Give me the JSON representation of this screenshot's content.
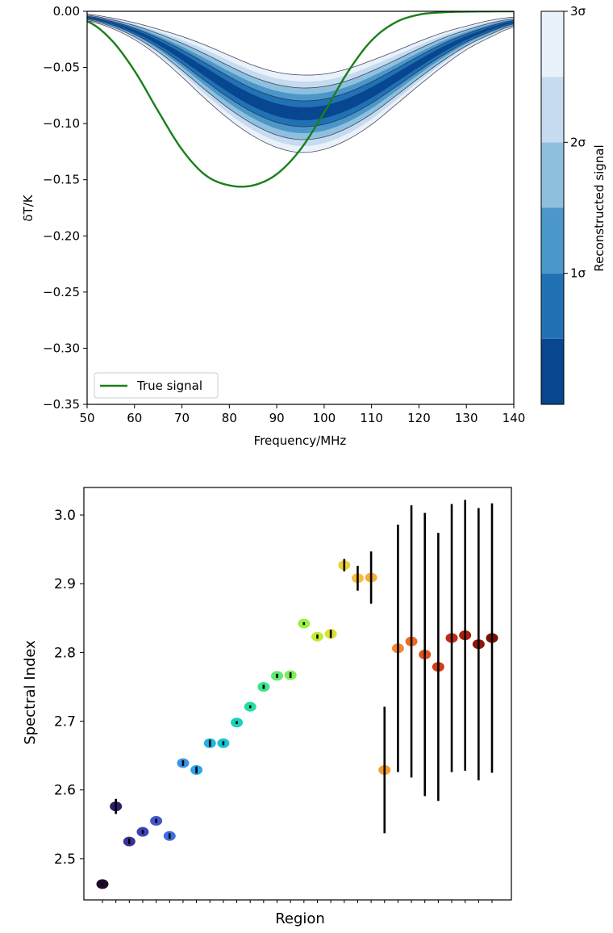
{
  "chart_data": [
    {
      "type": "line",
      "title": "",
      "xlabel": "Frequency/MHz",
      "ylabel": "δT/K",
      "xlim": [
        50,
        140
      ],
      "ylim": [
        -0.35,
        0.0
      ],
      "xticks": [
        "50",
        "60",
        "70",
        "80",
        "90",
        "100",
        "110",
        "120",
        "130",
        "140"
      ],
      "yticks": [
        "0.00",
        "−0.05",
        "−0.10",
        "−0.15",
        "−0.20",
        "−0.25",
        "−0.30",
        "−0.35"
      ],
      "legend": {
        "location": "lower-left",
        "entries": [
          "True signal"
        ]
      },
      "series": [
        {
          "name": "True signal",
          "color": "#1a7f1a",
          "x": [
            50,
            55,
            60,
            65,
            70,
            75,
            80,
            85,
            90,
            95,
            100,
            105,
            110,
            115,
            120,
            125,
            130,
            135,
            140
          ],
          "y": [
            -0.009,
            -0.025,
            -0.053,
            -0.089,
            -0.123,
            -0.146,
            -0.155,
            -0.155,
            -0.145,
            -0.123,
            -0.09,
            -0.054,
            -0.026,
            -0.01,
            -0.003,
            -0.0009,
            -0.0003,
            -0.0001,
            0.0
          ]
        },
        {
          "name": "Reconstructed signal (median)",
          "x": [
            50,
            55,
            60,
            65,
            70,
            75,
            80,
            85,
            90,
            95,
            100,
            105,
            110,
            115,
            120,
            125,
            130,
            135,
            140
          ],
          "y": [
            -0.0055,
            -0.0103,
            -0.0177,
            -0.0279,
            -0.0404,
            -0.0542,
            -0.0678,
            -0.0795,
            -0.0877,
            -0.0912,
            -0.0894,
            -0.0827,
            -0.0723,
            -0.0596,
            -0.0464,
            -0.0341,
            -0.0237,
            -0.0156,
            -0.0097
          ],
          "sigma_band_half_width": {
            "1sigma": [
              0.001,
              0.0015,
              0.0025,
              0.004,
              0.006,
              0.008,
              0.0095,
              0.0105,
              0.0112,
              0.0115,
              0.0112,
              0.0105,
              0.0095,
              0.008,
              0.0065,
              0.005,
              0.0035,
              0.0025,
              0.0015
            ],
            "2sigma": [
              0.002,
              0.003,
              0.005,
              0.008,
              0.012,
              0.016,
              0.019,
              0.021,
              0.0225,
              0.023,
              0.0225,
              0.021,
              0.019,
              0.016,
              0.013,
              0.01,
              0.007,
              0.005,
              0.003
            ],
            "3sigma": [
              0.003,
              0.0045,
              0.0075,
              0.012,
              0.018,
              0.024,
              0.0285,
              0.0315,
              0.0335,
              0.0345,
              0.0335,
              0.0315,
              0.0285,
              0.024,
              0.0195,
              0.015,
              0.0105,
              0.0075,
              0.0045
            ]
          }
        }
      ],
      "colorbar": {
        "label": "Reconstructed signal",
        "ticks": [
          "1σ",
          "2σ",
          "3σ"
        ],
        "levels": 6,
        "colors": [
          "#08468f",
          "#2171b5",
          "#4b97c9",
          "#8ec0de",
          "#c6dbef",
          "#e9f2fa"
        ]
      }
    },
    {
      "type": "scatter",
      "title": "",
      "xlabel": "Region",
      "ylabel": "Spectral Index",
      "ylim": [
        2.44,
        3.04
      ],
      "yticks": [
        "2.5",
        "2.6",
        "2.7",
        "2.8",
        "2.9",
        "3.0"
      ],
      "points": [
        {
          "region": 1,
          "value": 2.463,
          "err": 0.002,
          "color": "#1e0a2c"
        },
        {
          "region": 2,
          "value": 2.576,
          "err": 0.011,
          "color": "#2c1d66"
        },
        {
          "region": 3,
          "value": 2.525,
          "err": 0.004,
          "color": "#3a3396"
        },
        {
          "region": 4,
          "value": 2.539,
          "err": 0.003,
          "color": "#3e44b5"
        },
        {
          "region": 5,
          "value": 2.555,
          "err": 0.003,
          "color": "#4457cc"
        },
        {
          "region": 6,
          "value": 2.533,
          "err": 0.004,
          "color": "#3d6fe0"
        },
        {
          "region": 7,
          "value": 2.639,
          "err": 0.004,
          "color": "#3a92e8"
        },
        {
          "region": 8,
          "value": 2.629,
          "err": 0.005,
          "color": "#2ea4e8"
        },
        {
          "region": 9,
          "value": 2.668,
          "err": 0.005,
          "color": "#26b4e0"
        },
        {
          "region": 10,
          "value": 2.668,
          "err": 0.003,
          "color": "#1cc3d2"
        },
        {
          "region": 11,
          "value": 2.698,
          "err": 0.002,
          "color": "#1ad0bc"
        },
        {
          "region": 12,
          "value": 2.721,
          "err": 0.002,
          "color": "#25dca4"
        },
        {
          "region": 13,
          "value": 2.75,
          "err": 0.003,
          "color": "#3ee48a"
        },
        {
          "region": 14,
          "value": 2.766,
          "err": 0.003,
          "color": "#5eea70"
        },
        {
          "region": 15,
          "value": 2.767,
          "err": 0.004,
          "color": "#7cee58"
        },
        {
          "region": 16,
          "value": 2.842,
          "err": 0.002,
          "color": "#a0ef44"
        },
        {
          "region": 17,
          "value": 2.823,
          "err": 0.003,
          "color": "#c0ec38"
        },
        {
          "region": 18,
          "value": 2.827,
          "err": 0.006,
          "color": "#d8e134"
        },
        {
          "region": 19,
          "value": 2.927,
          "err": 0.009,
          "color": "#ead23a"
        },
        {
          "region": 20,
          "value": 2.908,
          "err": 0.018,
          "color": "#f3be3c"
        },
        {
          "region": 21,
          "value": 2.909,
          "err": 0.038,
          "color": "#f6ad3a"
        },
        {
          "region": 22,
          "value": 2.629,
          "err": 0.092,
          "color": "#f79d36"
        },
        {
          "region": 23,
          "value": 2.806,
          "err": 0.18,
          "color": "#f48632"
        },
        {
          "region": 24,
          "value": 2.816,
          "err": 0.198,
          "color": "#ec6a26"
        },
        {
          "region": 25,
          "value": 2.797,
          "err": 0.206,
          "color": "#e0501c"
        },
        {
          "region": 26,
          "value": 2.779,
          "err": 0.195,
          "color": "#d03c14"
        },
        {
          "region": 27,
          "value": 2.821,
          "err": 0.195,
          "color": "#be2c0e"
        },
        {
          "region": 28,
          "value": 2.825,
          "err": 0.197,
          "color": "#a8200a"
        },
        {
          "region": 29,
          "value": 2.812,
          "err": 0.198,
          "color": "#8e1607"
        },
        {
          "region": 30,
          "value": 2.821,
          "err": 0.196,
          "color": "#7a1004"
        }
      ]
    }
  ]
}
